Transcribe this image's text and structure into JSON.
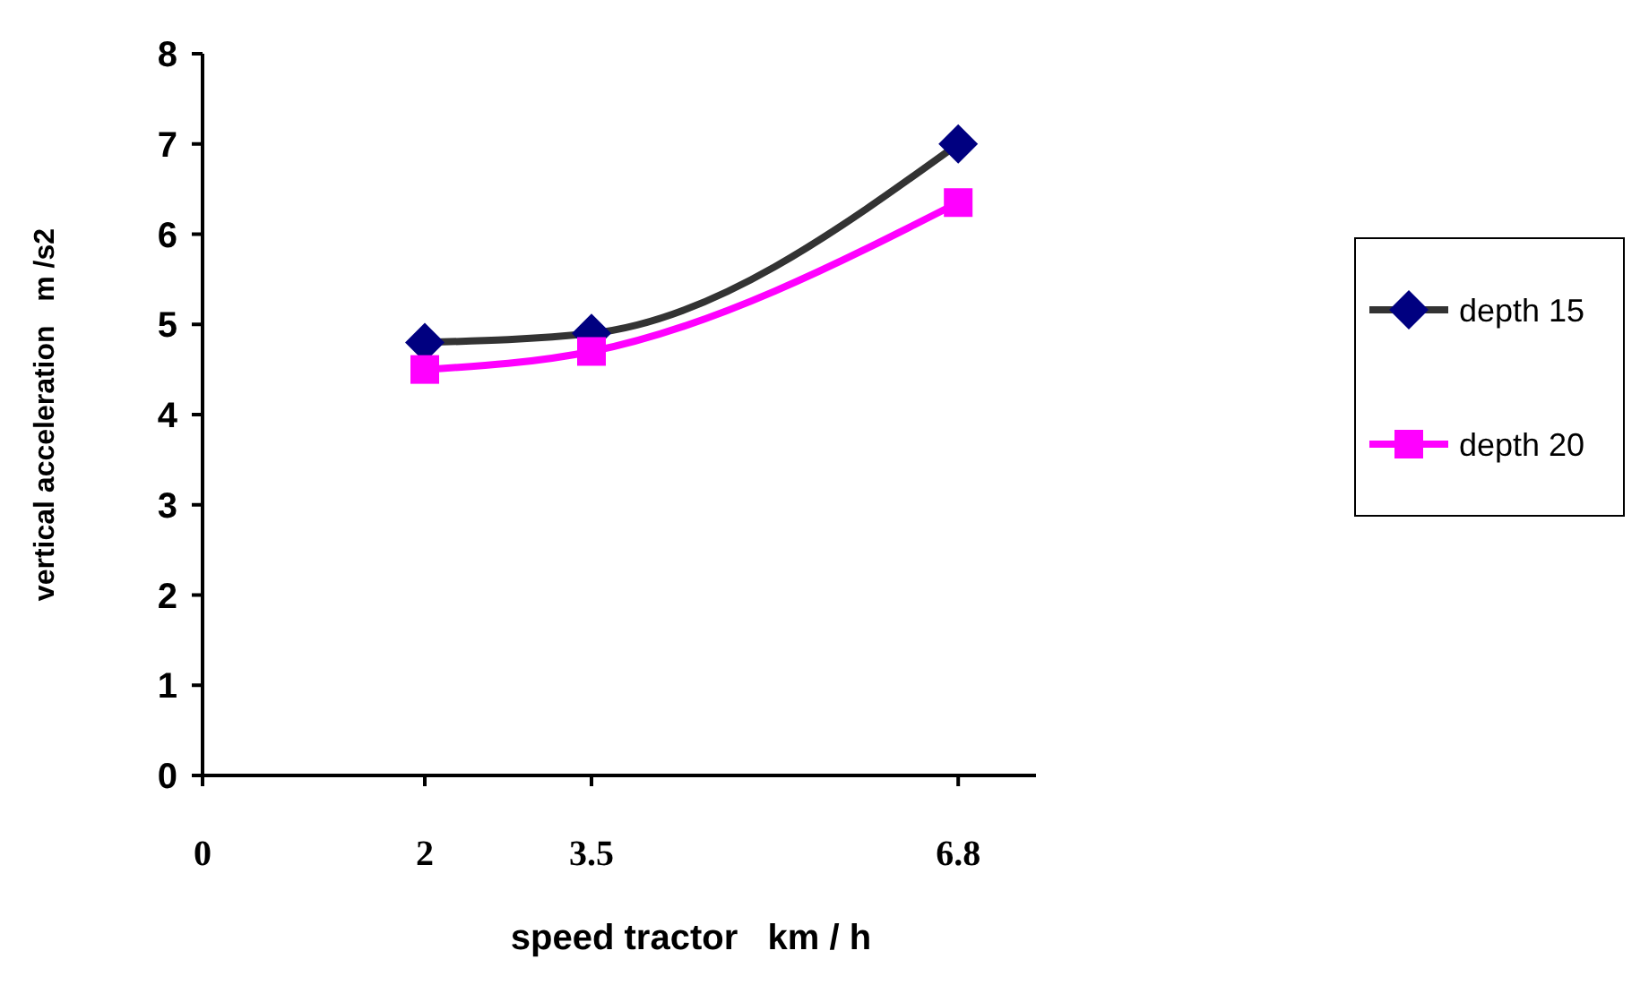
{
  "chart_data": {
    "type": "line",
    "xlabel": "speed tractor   km / h",
    "ylabel": "vertical acceleration   m /s2",
    "x": [
      2,
      3.5,
      6.8
    ],
    "series": [
      {
        "name": "depth 15",
        "color": "#000080",
        "values": [
          4.8,
          4.9,
          7.0
        ],
        "marker": "diamond"
      },
      {
        "name": "depth 20",
        "color": "#ff00ff",
        "values": [
          4.5,
          4.7,
          6.35
        ],
        "marker": "square"
      }
    ],
    "xlim": [
      0,
      7.5
    ],
    "xticks": [
      0,
      2,
      3.5,
      6.8
    ],
    "ylim": [
      0,
      8
    ],
    "yticks": [
      0,
      1,
      2,
      3,
      4,
      5,
      6,
      7,
      8
    ],
    "legend": "right",
    "grid": false
  }
}
